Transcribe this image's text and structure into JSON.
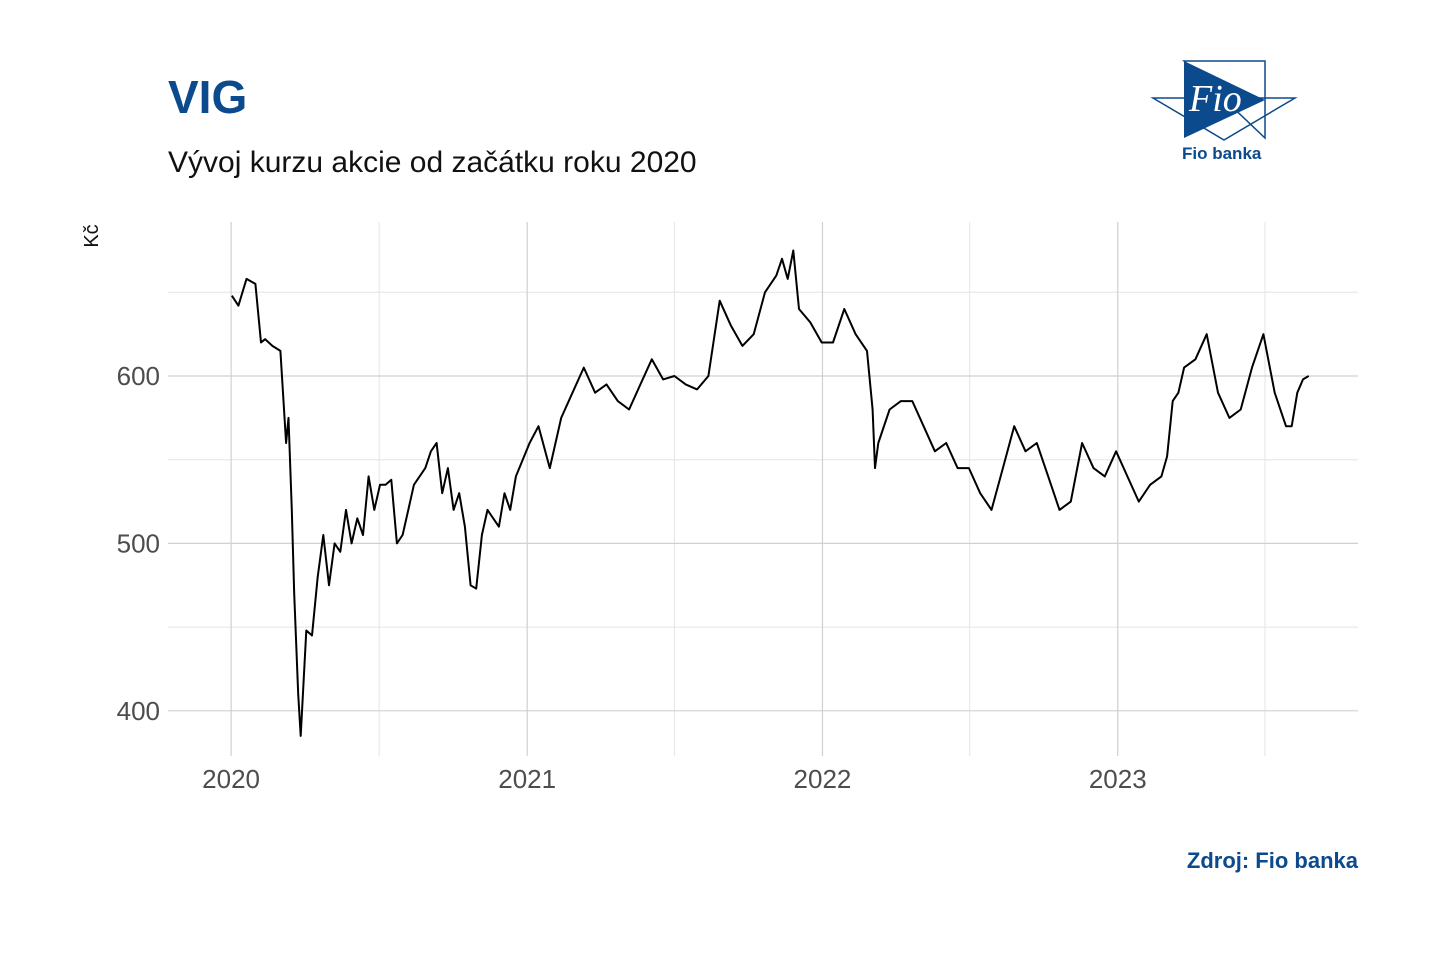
{
  "header": {
    "title": "VIG",
    "subtitle": "Vývoj kurzu akcie od začátku roku 2020"
  },
  "logo": {
    "name": "Fio banka",
    "mark_text": "Fio",
    "icon": "fio-logo-icon",
    "color": "#0b4a8c"
  },
  "footer": {
    "source": "Zdroj: Fio banka"
  },
  "chart_data": {
    "type": "line",
    "title": "VIG",
    "subtitle": "Vývoj kurzu akcie od začátku roku 2020",
    "xlabel": "",
    "ylabel": "Kč",
    "x_ticks": [
      "2020",
      "2021",
      "2022",
      "2023"
    ],
    "y_ticks": [
      400,
      500,
      600
    ],
    "ylim": [
      373,
      692
    ],
    "xlim": [
      "2019-10-15",
      "2023-10-25"
    ],
    "grid": true,
    "line_color": "#000000",
    "series": [
      {
        "x": [
          "2020-01-02",
          "2020-01-10",
          "2020-01-20",
          "2020-01-31",
          "2020-02-07",
          "2020-02-12",
          "2020-02-21",
          "2020-03-02",
          "2020-03-09",
          "2020-03-12",
          "2020-03-16",
          "2020-03-19",
          "2020-03-24",
          "2020-03-27",
          "2020-04-03",
          "2020-04-10",
          "2020-04-17",
          "2020-04-24",
          "2020-05-01",
          "2020-05-08",
          "2020-05-15",
          "2020-05-22",
          "2020-05-29",
          "2020-06-05",
          "2020-06-12",
          "2020-06-19",
          "2020-06-26",
          "2020-07-03",
          "2020-07-10",
          "2020-07-17",
          "2020-07-24",
          "2020-07-31",
          "2020-08-07",
          "2020-08-14",
          "2020-08-21",
          "2020-08-28",
          "2020-09-04",
          "2020-09-11",
          "2020-09-18",
          "2020-09-25",
          "2020-10-02",
          "2020-10-09",
          "2020-10-16",
          "2020-10-23",
          "2020-10-30",
          "2020-11-06",
          "2020-11-13",
          "2020-11-20",
          "2020-11-27",
          "2020-12-04",
          "2020-12-11",
          "2020-12-18",
          "2021-01-04",
          "2021-01-15",
          "2021-01-29",
          "2021-02-12",
          "2021-02-26",
          "2021-03-12",
          "2021-03-26",
          "2021-04-09",
          "2021-04-23",
          "2021-05-07",
          "2021-05-21",
          "2021-06-04",
          "2021-06-18",
          "2021-07-02",
          "2021-07-16",
          "2021-07-30",
          "2021-08-13",
          "2021-08-27",
          "2021-09-10",
          "2021-09-24",
          "2021-10-08",
          "2021-10-22",
          "2021-11-05",
          "2021-11-12",
          "2021-11-19",
          "2021-11-26",
          "2021-12-03",
          "2021-12-17",
          "2021-12-31",
          "2022-01-14",
          "2022-01-28",
          "2022-02-11",
          "2022-02-25",
          "2022-03-04",
          "2022-03-07",
          "2022-03-11",
          "2022-03-25",
          "2022-04-08",
          "2022-04-22",
          "2022-05-06",
          "2022-05-20",
          "2022-06-03",
          "2022-06-17",
          "2022-07-01",
          "2022-07-15",
          "2022-07-29",
          "2022-08-12",
          "2022-08-26",
          "2022-09-09",
          "2022-09-23",
          "2022-10-07",
          "2022-10-21",
          "2022-11-04",
          "2022-11-18",
          "2022-12-02",
          "2022-12-16",
          "2022-12-30",
          "2023-01-13",
          "2023-01-27",
          "2023-02-10",
          "2023-02-24",
          "2023-03-03",
          "2023-03-10",
          "2023-03-17",
          "2023-03-24",
          "2023-04-07",
          "2023-04-21",
          "2023-05-05",
          "2023-05-19",
          "2023-06-02",
          "2023-06-16",
          "2023-06-30",
          "2023-07-14",
          "2023-07-28",
          "2023-08-04",
          "2023-08-11",
          "2023-08-18",
          "2023-08-25"
        ],
        "y": [
          648,
          642,
          658,
          655,
          620,
          622,
          618,
          615,
          560,
          575,
          520,
          470,
          410,
          385,
          448,
          445,
          480,
          505,
          475,
          500,
          495,
          520,
          500,
          515,
          505,
          540,
          520,
          535,
          535,
          538,
          500,
          505,
          520,
          535,
          540,
          545,
          555,
          560,
          530,
          545,
          520,
          530,
          510,
          475,
          473,
          505,
          520,
          515,
          510,
          530,
          520,
          540,
          560,
          570,
          545,
          575,
          590,
          605,
          590,
          595,
          585,
          580,
          595,
          610,
          598,
          600,
          595,
          592,
          600,
          645,
          630,
          618,
          625,
          650,
          660,
          670,
          658,
          675,
          640,
          632,
          620,
          620,
          640,
          625,
          615,
          580,
          545,
          560,
          580,
          585,
          585,
          570,
          555,
          560,
          545,
          545,
          530,
          520,
          545,
          570,
          555,
          560,
          540,
          520,
          525,
          560,
          545,
          540,
          555,
          540,
          525,
          535,
          540,
          552,
          585,
          590,
          605,
          610,
          625,
          590,
          575,
          580,
          605,
          625,
          590,
          570,
          570,
          590,
          598,
          600
        ]
      }
    ]
  }
}
